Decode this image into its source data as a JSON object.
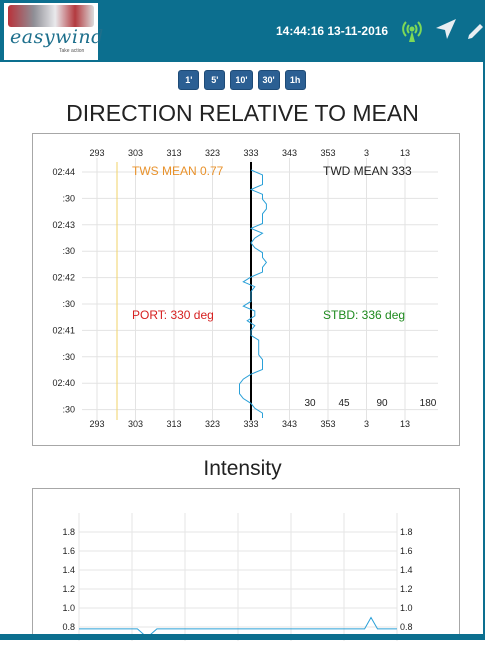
{
  "header": {
    "logo_text": "easywind",
    "logo_subtext": "Take action",
    "datetime": "14:44:16 13-11-2016",
    "icons": [
      "antenna-icon",
      "navigation-arrow-icon",
      "pencil-icon"
    ]
  },
  "time_buttons": [
    "1'",
    "5'",
    "10'",
    "30'",
    "1h"
  ],
  "direction_panel": {
    "title": "DIRECTION RELATIVE TO MEAN",
    "tws_mean": "TWS MEAN 0.77",
    "twd_mean": "TWD MEAN 333",
    "port": "PORT: 330 deg",
    "stbd": "STBD: 336 deg",
    "scale_labels": [
      "30",
      "45",
      "90",
      "180"
    ]
  },
  "intensity_panel": {
    "title": "Intensity"
  },
  "colors": {
    "header_bg": "#0c6f8f",
    "button_bg": "#2b5f93",
    "tws_text": "#e8912a",
    "port_text": "#d62020",
    "stbd_text": "#1e8a1e",
    "series_line": "#2aa0d8",
    "mean_line": "#000000"
  },
  "chart_data": [
    {
      "type": "line",
      "title": "DIRECTION RELATIVE TO MEAN",
      "x_ticks": [
        293,
        303,
        313,
        323,
        333,
        343,
        353,
        3,
        13
      ],
      "y_ticks": [
        "02:44",
        ":30",
        "02:43",
        ":30",
        "02:42",
        ":30",
        "02:41",
        ":30",
        "02:40",
        ":30"
      ],
      "mean_direction": 333,
      "series": [
        {
          "values_deg": [
            333,
            336,
            336,
            336,
            333,
            336,
            336,
            337,
            337,
            336,
            336,
            336,
            333,
            336,
            334,
            333,
            334,
            336,
            336,
            337,
            336,
            336,
            333,
            331,
            334,
            333,
            333,
            333,
            331,
            334,
            334,
            332,
            334,
            333,
            333,
            335,
            335,
            335,
            335,
            336,
            336,
            336,
            333,
            331,
            330,
            330,
            330,
            331,
            333,
            334,
            336,
            336
          ]
        }
      ],
      "grid": true
    },
    {
      "type": "line",
      "title": "Intensity",
      "y_ticks": [
        "1.8",
        "1.6",
        "1.4",
        "1.2",
        "1.0",
        "0.8"
      ],
      "ylim": [
        0.8,
        1.8
      ],
      "series": [
        {
          "values": [
            0.78,
            0.78,
            0.78,
            0.78,
            0.78,
            0.78,
            0.78,
            0.78,
            0.78,
            0.78,
            0.72,
            0.72,
            0.78,
            0.78,
            0.78,
            0.78,
            0.78,
            0.78,
            0.78,
            0.78,
            0.78,
            0.78,
            0.78,
            0.78,
            0.78,
            0.78,
            0.78,
            0.78,
            0.78,
            0.78,
            0.78,
            0.78,
            0.78,
            0.78,
            0.78,
            0.78,
            0.78,
            0.78,
            0.78,
            0.78,
            0.78,
            0.78,
            0.78,
            0.78,
            0.78,
            0.9,
            0.78,
            0.78,
            0.78,
            0.78
          ]
        }
      ],
      "grid": true
    }
  ]
}
